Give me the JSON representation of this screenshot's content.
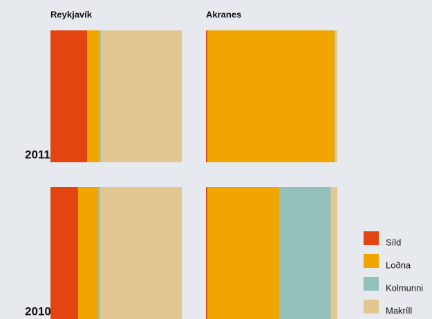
{
  "chart_data": {
    "type": "stacked_bar",
    "panels": [
      "Reykjavík",
      "Akranes"
    ],
    "categories": [
      "2011",
      "2010"
    ],
    "xlim": [
      0,
      100
    ],
    "series": [
      {
        "name": "Síld",
        "color": "#e2450f",
        "values": [
          [
            28,
            21
          ],
          [
            1,
            1
          ]
        ]
      },
      {
        "name": "Loðna",
        "color": "#f0a500",
        "values": [
          [
            9.5,
            15.5
          ],
          [
            97,
            55
          ]
        ]
      },
      {
        "name": "Kolmunni",
        "color": "#95c1bd",
        "values": [
          [
            1,
            1.5
          ],
          [
            0.5,
            39
          ]
        ]
      },
      {
        "name": "Makríll",
        "color": "#e3c792",
        "values": [
          [
            61.5,
            62
          ],
          [
            1.5,
            5
          ]
        ]
      }
    ]
  }
}
